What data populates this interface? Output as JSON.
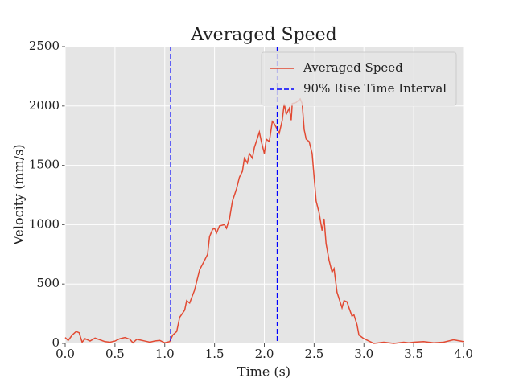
{
  "chart_data": {
    "type": "line",
    "title": "Averaged Speed",
    "x_label": "Time (s)",
    "y_label": "Velocity (mm/s)",
    "xlim": [
      0,
      4
    ],
    "ylim": [
      0,
      2500
    ],
    "xticks": [
      {
        "value": 0,
        "label": "0.0"
      },
      0.5,
      {
        "value": 1,
        "label": "1.0"
      },
      1.5,
      {
        "value": 2,
        "label": "2.0"
      },
      2.5,
      {
        "value": 3,
        "label": "3.0"
      },
      3.5,
      {
        "value": 4,
        "label": "4.0"
      }
    ],
    "yticks": [
      0,
      500,
      1000,
      1500,
      2000,
      2500
    ],
    "grid": true,
    "legend": "upper right",
    "series": [
      {
        "name": "Averaged Speed",
        "color": "#e24a33",
        "x": [
          0.0,
          0.03,
          0.07,
          0.11,
          0.14,
          0.17,
          0.2,
          0.25,
          0.3,
          0.35,
          0.4,
          0.45,
          0.5,
          0.55,
          0.6,
          0.65,
          0.68,
          0.72,
          0.8,
          0.85,
          0.9,
          0.95,
          1.0,
          1.05,
          1.08,
          1.12,
          1.15,
          1.2,
          1.22,
          1.25,
          1.3,
          1.35,
          1.4,
          1.43,
          1.45,
          1.48,
          1.5,
          1.52,
          1.55,
          1.6,
          1.62,
          1.65,
          1.68,
          1.72,
          1.75,
          1.78,
          1.8,
          1.83,
          1.85,
          1.88,
          1.9,
          1.95,
          1.97,
          2.0,
          2.02,
          2.05,
          2.08,
          2.1,
          2.15,
          2.18,
          2.2,
          2.22,
          2.25,
          2.27,
          2.28,
          2.32,
          2.36,
          2.38,
          2.4,
          2.42,
          2.45,
          2.48,
          2.52,
          2.55,
          2.58,
          2.6,
          2.62,
          2.65,
          2.68,
          2.7,
          2.73,
          2.78,
          2.8,
          2.83,
          2.85,
          2.88,
          2.9,
          2.93,
          2.95,
          3.0,
          3.05,
          3.1,
          3.2,
          3.3,
          3.4,
          3.45,
          3.5,
          3.6,
          3.7,
          3.8,
          3.9,
          4.0
        ],
        "values": [
          50,
          25,
          70,
          100,
          90,
          10,
          40,
          20,
          45,
          30,
          15,
          10,
          20,
          40,
          50,
          35,
          5,
          35,
          20,
          10,
          20,
          25,
          5,
          15,
          70,
          100,
          220,
          280,
          360,
          340,
          450,
          620,
          700,
          750,
          900,
          960,
          970,
          930,
          990,
          1000,
          970,
          1050,
          1200,
          1300,
          1400,
          1450,
          1560,
          1520,
          1600,
          1560,
          1650,
          1780,
          1700,
          1600,
          1720,
          1700,
          1870,
          1850,
          1770,
          1880,
          2020,
          1930,
          1980,
          1880,
          2020,
          2030,
          2060,
          2020,
          1800,
          1720,
          1700,
          1600,
          1200,
          1100,
          950,
          1050,
          840,
          700,
          600,
          630,
          430,
          300,
          360,
          350,
          300,
          230,
          240,
          160,
          70,
          40,
          20,
          0,
          10,
          0,
          10,
          5,
          10,
          15,
          5,
          10,
          30,
          15
        ]
      }
    ],
    "vlines": {
      "name": "90% Rise Time Interval",
      "color": "#0000ff",
      "x": [
        1.06,
        2.13
      ]
    }
  }
}
